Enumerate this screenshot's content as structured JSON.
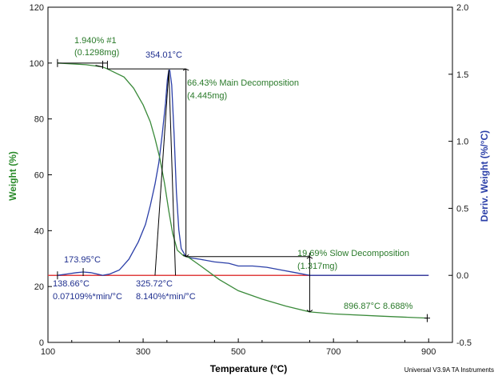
{
  "chart_data": {
    "type": "line",
    "xlabel": "Temperature (°C)",
    "ylabel": "Weight (%)",
    "y2label": "Deriv. Weight (%/°C)",
    "xlim": [
      100,
      950
    ],
    "ylim": [
      0,
      120
    ],
    "y2lim": [
      -0.5,
      2.0
    ],
    "xticks": [
      100,
      300,
      500,
      700,
      900
    ],
    "yticks": [
      0,
      20,
      40,
      60,
      80,
      100,
      120
    ],
    "y2ticks": [
      -0.5,
      0.0,
      0.5,
      1.0,
      1.5,
      2.0
    ],
    "y2tick_labels": [
      "-0.5",
      "0.0",
      "0.5",
      "1.0",
      "1.5",
      "2.0"
    ],
    "footer": "Universal V3.9A TA Instruments",
    "colors": {
      "weight": "#3a8a3a",
      "deriv": "#2b3fa8",
      "baseline": "#e04040",
      "marker": "#000000",
      "annot_green": "#2a7a2a",
      "annot_blue": "#1f2f8f"
    },
    "series": [
      {
        "axis": "left",
        "x": [
          120,
          180,
          215,
          225,
          260,
          280,
          300,
          315,
          325,
          335,
          345,
          354,
          362,
          372,
          385,
          395,
          420,
          460,
          500,
          550,
          600,
          650,
          700,
          800,
          897
        ],
        "values": [
          100,
          99.4,
          98.6,
          97.9,
          95,
          91,
          85,
          79,
          73,
          66,
          57,
          47,
          39,
          33,
          31,
          30.5,
          27.5,
          22.5,
          18.5,
          15.5,
          13,
          10.9,
          10.2,
          9.4,
          8.7
        ]
      },
      {
        "axis": "right",
        "x": [
          120,
          140,
          160,
          174,
          190,
          215,
          230,
          250,
          270,
          290,
          305,
          315,
          325,
          333,
          340,
          347,
          351,
          354,
          356,
          360,
          365,
          370,
          375,
          380,
          390,
          400,
          420,
          450,
          480,
          500,
          530,
          560,
          590,
          620,
          650,
          700,
          800,
          900
        ],
        "values": [
          0.0,
          0.01,
          0.02,
          0.025,
          0.02,
          0.0,
          0.01,
          0.04,
          0.12,
          0.25,
          0.38,
          0.52,
          0.68,
          0.84,
          1.05,
          1.28,
          1.46,
          1.53,
          1.53,
          1.42,
          1.05,
          0.62,
          0.34,
          0.2,
          0.14,
          0.13,
          0.12,
          0.1,
          0.09,
          0.07,
          0.07,
          0.06,
          0.04,
          0.02,
          0.0,
          0.0,
          0.0,
          0.0
        ]
      },
      {
        "axis": "right",
        "x": [
          100,
          900
        ],
        "values": [
          0.0,
          0.0
        ]
      }
    ],
    "annotations": {
      "step1": {
        "text_a": "1.940% #1",
        "text_b": "(0.1298mg)"
      },
      "peak": {
        "text": "354.01°C"
      },
      "main": {
        "text_a": "66.43% Main Decomposition",
        "text_b": "(4.445mg)"
      },
      "onset_peak": {
        "text": "173.95°C"
      },
      "onset1": {
        "text_a": "138.66°C",
        "text_b": "0.07109%*min/°C"
      },
      "onset2": {
        "text_a": "325.72°C",
        "text_b": "8.140%*min/°C"
      },
      "slow": {
        "text_a": "19.69% Slow Decomposition",
        "text_b": "(1.317mg)"
      },
      "residue": {
        "text": "896.87°C 8.688%"
      }
    }
  }
}
